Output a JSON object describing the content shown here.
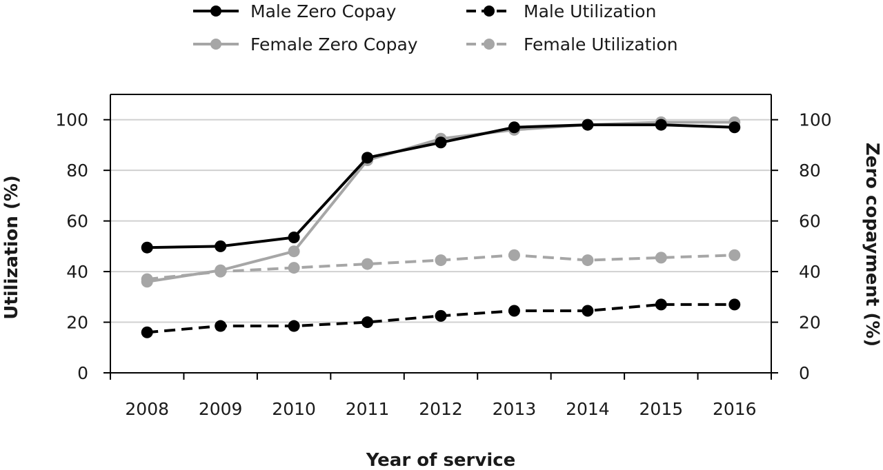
{
  "chart_data": {
    "type": "line",
    "title": "",
    "xlabel": "Year of service",
    "ylabel": "Utilization (%)",
    "y2label": "Zero copayment (%)",
    "categories": [
      "2008",
      "2009",
      "2010",
      "2011",
      "2012",
      "2013",
      "2014",
      "2015",
      "2016"
    ],
    "ylim": [
      0,
      110
    ],
    "y2lim": [
      0,
      110
    ],
    "yticks": [
      0,
      20,
      40,
      60,
      80,
      100
    ],
    "grid": "horizontal",
    "legend": "top",
    "series": [
      {
        "name": "Male Zero Copay",
        "axis": "right",
        "color": "#000000",
        "dash": "solid",
        "values": [
          49.5,
          50,
          53.5,
          85,
          91,
          97,
          98,
          98,
          97
        ]
      },
      {
        "name": "Male Utilization",
        "axis": "left",
        "color": "#000000",
        "dash": "dashed",
        "values": [
          16,
          18.5,
          18.5,
          20,
          22.5,
          24.5,
          24.5,
          27,
          27
        ]
      },
      {
        "name": "Female Zero Copay",
        "axis": "right",
        "color": "#a6a6a6",
        "dash": "solid",
        "values": [
          36,
          40.5,
          48,
          84,
          92.5,
          96,
          98,
          99,
          99
        ]
      },
      {
        "name": "Female Utilization",
        "axis": "left",
        "color": "#a6a6a6",
        "dash": "dashed",
        "values": [
          37,
          40,
          41.5,
          43,
          44.5,
          46.5,
          44.5,
          45.5,
          46.5
        ]
      }
    ]
  }
}
